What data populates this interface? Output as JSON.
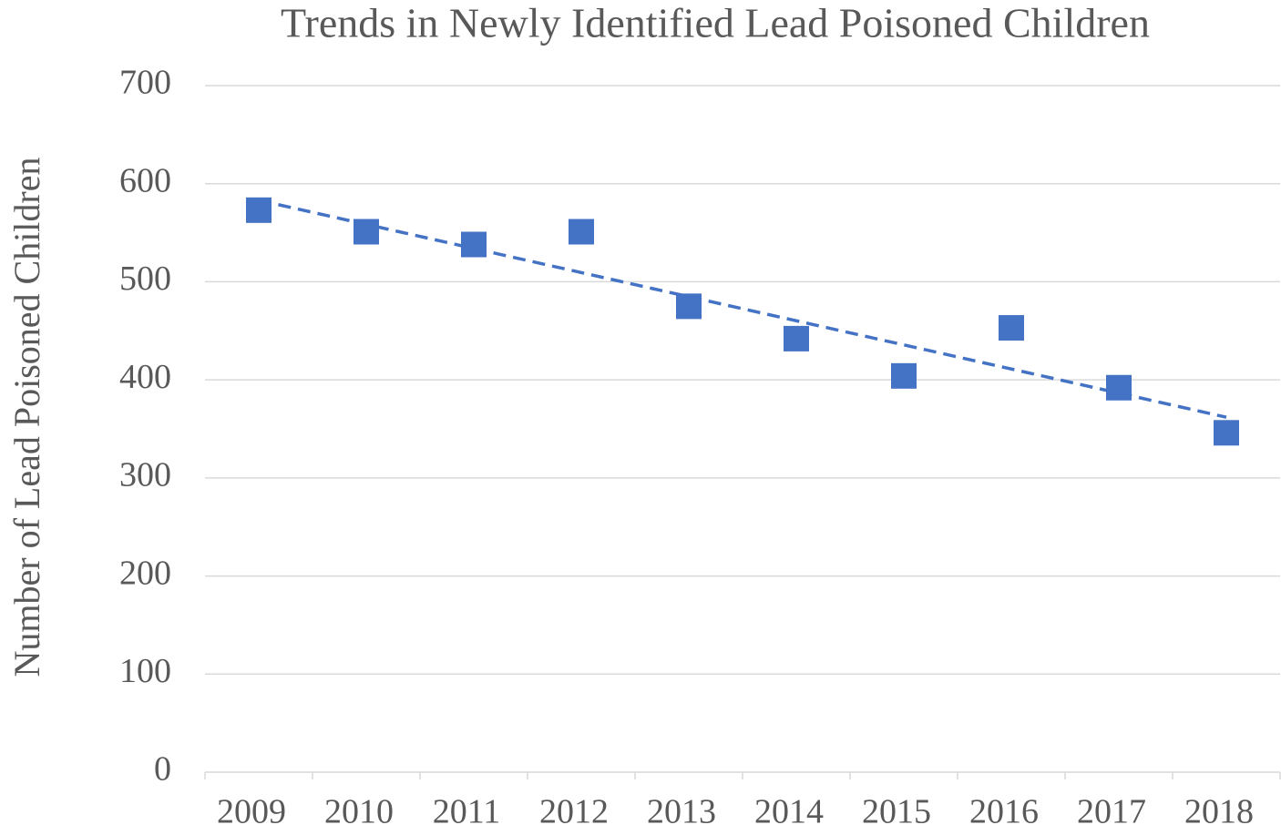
{
  "chart_data": {
    "type": "scatter",
    "title": "Trends in Newly Identified Lead Poisoned Children",
    "y_label": "Number of Lead Poisoned Children",
    "categories": [
      "2009",
      "2010",
      "2011",
      "2012",
      "2013",
      "2014",
      "2015",
      "2016",
      "2017",
      "2018"
    ],
    "values": [
      573,
      551,
      538,
      551,
      475,
      442,
      404,
      453,
      392,
      346
    ],
    "color": "#4472c4",
    "marker": "square",
    "trendline": "linear",
    "ylim": [
      0,
      700
    ],
    "yticks": [
      0,
      100,
      200,
      300,
      400,
      500,
      600,
      700
    ],
    "grid": true
  }
}
